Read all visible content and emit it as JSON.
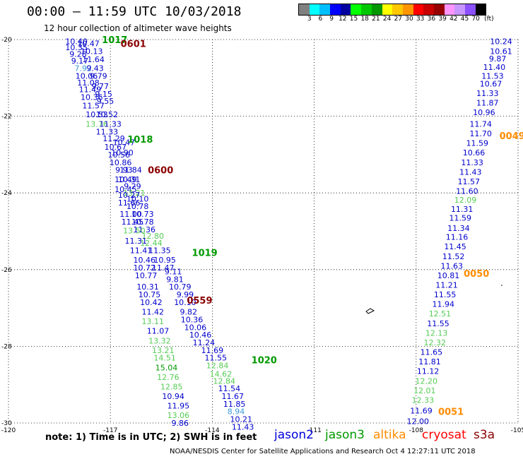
{
  "header": {
    "title": "00:00 – 11:59 UTC 10/03/2018",
    "subtitle": "12 hour collection of altimeter wave heights"
  },
  "colorbar": {
    "colors": [
      "#808080",
      "#00ffff",
      "#00bfff",
      "#0000ff",
      "#0000a0",
      "#00ff00",
      "#00c800",
      "#009600",
      "#ffff00",
      "#ffc800",
      "#ff9600",
      "#ff0000",
      "#c80000",
      "#960000",
      "#ff96ff",
      "#c896ff",
      "#8c50ff",
      "#000000"
    ],
    "labels": [
      "3",
      "6",
      "9",
      "12",
      "15",
      "18",
      "21",
      "24",
      "27",
      "30",
      "33",
      "36",
      "39",
      "42",
      "45",
      "70",
      "(ft)"
    ]
  },
  "axes": {
    "lon_ticks": [
      "-120",
      "-117",
      "-114",
      "-111",
      "-108",
      "-105"
    ],
    "lat_ticks": [
      "-20",
      "-22",
      "-24",
      "-26",
      "-28",
      "-30"
    ]
  },
  "chart_data": {
    "type": "scatter",
    "xlim": [
      -120,
      -105
    ],
    "ylim": [
      -30,
      -20
    ],
    "units": "ft",
    "points": [
      {
        "x": -118.0,
        "y": -20.05,
        "v": "10.40",
        "c": "#0000cc"
      },
      {
        "x": -117.65,
        "y": -20.1,
        "v": "10.47",
        "c": "#0000cc"
      },
      {
        "x": -118.0,
        "y": -20.2,
        "v": "10.35",
        "c": "#0000cc"
      },
      {
        "x": -117.55,
        "y": -20.3,
        "v": "10.13",
        "c": "#0000cc"
      },
      {
        "x": -117.95,
        "y": -20.38,
        "v": "9.28",
        "c": "#0000cc"
      },
      {
        "x": -117.9,
        "y": -20.55,
        "v": "9.17",
        "c": "#0000cc"
      },
      {
        "x": -117.5,
        "y": -20.52,
        "v": "11.64",
        "c": "#0000cc"
      },
      {
        "x": -117.8,
        "y": -20.75,
        "v": "7.92",
        "c": "#3c9bdc"
      },
      {
        "x": -117.45,
        "y": -20.75,
        "v": "9.43",
        "c": "#0000cc"
      },
      {
        "x": -117.7,
        "y": -20.95,
        "v": "10.06",
        "c": "#0000cc"
      },
      {
        "x": -117.35,
        "y": -20.95,
        "v": "9.79",
        "c": "#0000cc"
      },
      {
        "x": -117.65,
        "y": -21.12,
        "v": "11.08",
        "c": "#0000cc"
      },
      {
        "x": -117.3,
        "y": -21.22,
        "v": "9.77",
        "c": "#0000cc"
      },
      {
        "x": -117.6,
        "y": -21.3,
        "v": "11.49",
        "c": "#0000cc"
      },
      {
        "x": -117.2,
        "y": -21.42,
        "v": "9.15",
        "c": "#0000cc"
      },
      {
        "x": -117.55,
        "y": -21.5,
        "v": "10.36",
        "c": "#0000cc"
      },
      {
        "x": -117.15,
        "y": -21.6,
        "v": "9.55",
        "c": "#0000cc"
      },
      {
        "x": -117.5,
        "y": -21.72,
        "v": "11.57",
        "c": "#0000cc"
      },
      {
        "x": -117.4,
        "y": -21.95,
        "v": "10.53",
        "c": "#0000cc"
      },
      {
        "x": -117.1,
        "y": -21.95,
        "v": "10.52",
        "c": "#0000cc"
      },
      {
        "x": -117.4,
        "y": -22.2,
        "v": "13.76",
        "c": "#55cc55"
      },
      {
        "x": -117.0,
        "y": -22.2,
        "v": "11.33",
        "c": "#0000cc"
      },
      {
        "x": -117.1,
        "y": -22.4,
        "v": "11.33",
        "c": "#0000cc"
      },
      {
        "x": -116.9,
        "y": -22.58,
        "v": "11.29",
        "c": "#0000cc"
      },
      {
        "x": -116.6,
        "y": -22.68,
        "v": "10.47",
        "c": "#0000cc"
      },
      {
        "x": -116.85,
        "y": -22.8,
        "v": "10.67",
        "c": "#0000cc"
      },
      {
        "x": -116.65,
        "y": -22.95,
        "v": "10.90",
        "c": "#0000cc"
      },
      {
        "x": -116.75,
        "y": -23.0,
        "v": "10.56",
        "c": "#0000cc"
      },
      {
        "x": -116.7,
        "y": -23.2,
        "v": "10.86",
        "c": "#0000cc"
      },
      {
        "x": -116.4,
        "y": -23.4,
        "v": "11.84",
        "c": "#0000cc"
      },
      {
        "x": -116.6,
        "y": -23.4,
        "v": "9.93",
        "c": "#0000cc"
      },
      {
        "x": -116.55,
        "y": -23.65,
        "v": "10.49",
        "c": "#0000cc"
      },
      {
        "x": -116.45,
        "y": -23.65,
        "v": "10.31",
        "c": "#0000cc"
      },
      {
        "x": -116.35,
        "y": -23.82,
        "v": "9.29",
        "c": "#0000cc"
      },
      {
        "x": -116.55,
        "y": -23.9,
        "v": "10.45",
        "c": "#0000cc"
      },
      {
        "x": -116.3,
        "y": -24.0,
        "v": "13.21",
        "c": "#55cc55"
      },
      {
        "x": -116.45,
        "y": -24.05,
        "v": "10.27",
        "c": "#0000cc"
      },
      {
        "x": -116.2,
        "y": -24.15,
        "v": "10.10",
        "c": "#0000cc"
      },
      {
        "x": -116.45,
        "y": -24.25,
        "v": "11.66",
        "c": "#0000cc"
      },
      {
        "x": -116.2,
        "y": -24.35,
        "v": "10.78",
        "c": "#0000cc"
      },
      {
        "x": -116.4,
        "y": -24.55,
        "v": "11.00",
        "c": "#0000cc"
      },
      {
        "x": -116.05,
        "y": -24.55,
        "v": "10.73",
        "c": "#0000cc"
      },
      {
        "x": -116.35,
        "y": -24.75,
        "v": "11.45",
        "c": "#0000cc"
      },
      {
        "x": -116.05,
        "y": -24.75,
        "v": "10.78",
        "c": "#0000cc"
      },
      {
        "x": -116.0,
        "y": -24.95,
        "v": "11.36",
        "c": "#0000cc"
      },
      {
        "x": -116.3,
        "y": -24.98,
        "v": "13.50",
        "c": "#55cc55"
      },
      {
        "x": -115.75,
        "y": -25.12,
        "v": "12.80",
        "c": "#55cc55"
      },
      {
        "x": -116.25,
        "y": -25.25,
        "v": "11.31",
        "c": "#0000cc"
      },
      {
        "x": -115.8,
        "y": -25.3,
        "v": "12.44",
        "c": "#55cc55"
      },
      {
        "x": -116.1,
        "y": -25.5,
        "v": "11.41",
        "c": "#0000cc"
      },
      {
        "x": -115.55,
        "y": -25.5,
        "v": "11.35",
        "c": "#0000cc"
      },
      {
        "x": -116.0,
        "y": -25.75,
        "v": "10.46",
        "c": "#0000cc"
      },
      {
        "x": -115.4,
        "y": -25.75,
        "v": "10.95",
        "c": "#0000cc"
      },
      {
        "x": -116.0,
        "y": -25.95,
        "v": "10.72",
        "c": "#0000cc"
      },
      {
        "x": -115.45,
        "y": -25.95,
        "v": "11.47",
        "c": "#0000cc"
      },
      {
        "x": -115.15,
        "y": -26.05,
        "v": "9.11",
        "c": "#0000cc"
      },
      {
        "x": -115.95,
        "y": -26.15,
        "v": "10.77",
        "c": "#0000cc"
      },
      {
        "x": -115.1,
        "y": -26.25,
        "v": "9.81",
        "c": "#0000cc"
      },
      {
        "x": -115.9,
        "y": -26.45,
        "v": "10.31",
        "c": "#0000cc"
      },
      {
        "x": -114.95,
        "y": -26.45,
        "v": "10.79",
        "c": "#0000cc"
      },
      {
        "x": -115.85,
        "y": -26.65,
        "v": "10.75",
        "c": "#0000cc"
      },
      {
        "x": -114.8,
        "y": -26.65,
        "v": "9.99",
        "c": "#0000cc"
      },
      {
        "x": -115.8,
        "y": -26.85,
        "v": "10.42",
        "c": "#0000cc"
      },
      {
        "x": -114.8,
        "y": -26.85,
        "v": "10.10",
        "c": "#0000cc"
      },
      {
        "x": -115.75,
        "y": -27.1,
        "v": "11.42",
        "c": "#0000cc"
      },
      {
        "x": -114.7,
        "y": -27.1,
        "v": "9.82",
        "c": "#0000cc"
      },
      {
        "x": -115.75,
        "y": -27.35,
        "v": "13.11",
        "c": "#55cc55"
      },
      {
        "x": -114.6,
        "y": -27.3,
        "v": "10.36",
        "c": "#0000cc"
      },
      {
        "x": -114.5,
        "y": -27.5,
        "v": "10.06",
        "c": "#0000cc"
      },
      {
        "x": -115.6,
        "y": -27.6,
        "v": "11.07",
        "c": "#0000cc"
      },
      {
        "x": -114.35,
        "y": -27.7,
        "v": "10.46",
        "c": "#0000cc"
      },
      {
        "x": -115.55,
        "y": -27.85,
        "v": "13.32",
        "c": "#55cc55"
      },
      {
        "x": -114.25,
        "y": -27.9,
        "v": "11.24",
        "c": "#0000cc"
      },
      {
        "x": -115.45,
        "y": -28.1,
        "v": "13.21",
        "c": "#55cc55"
      },
      {
        "x": -114.0,
        "y": -28.1,
        "v": "11.69",
        "c": "#0000cc"
      },
      {
        "x": -115.4,
        "y": -28.3,
        "v": "14.51",
        "c": "#55cc55"
      },
      {
        "x": -113.9,
        "y": -28.3,
        "v": "11.55",
        "c": "#0000cc"
      },
      {
        "x": -115.35,
        "y": -28.55,
        "v": "15.04",
        "c": "#009900"
      },
      {
        "x": -113.85,
        "y": -28.5,
        "v": "12.84",
        "c": "#55cc55"
      },
      {
        "x": -113.75,
        "y": -28.72,
        "v": "14.62",
        "c": "#55cc55"
      },
      {
        "x": -115.3,
        "y": -28.8,
        "v": "12.76",
        "c": "#55cc55"
      },
      {
        "x": -113.65,
        "y": -28.9,
        "v": "12.84",
        "c": "#55cc55"
      },
      {
        "x": -115.2,
        "y": -29.05,
        "v": "12.85",
        "c": "#55cc55"
      },
      {
        "x": -113.5,
        "y": -29.1,
        "v": "11.54",
        "c": "#0000cc"
      },
      {
        "x": -115.15,
        "y": -29.3,
        "v": "10.94",
        "c": "#0000cc"
      },
      {
        "x": -113.4,
        "y": -29.3,
        "v": "11.67",
        "c": "#0000cc"
      },
      {
        "x": -115.0,
        "y": -29.55,
        "v": "11.95",
        "c": "#0000cc"
      },
      {
        "x": -113.35,
        "y": -29.5,
        "v": "11.85",
        "c": "#0000cc"
      },
      {
        "x": -115.0,
        "y": -29.8,
        "v": "13.06",
        "c": "#55cc55"
      },
      {
        "x": -113.3,
        "y": -29.7,
        "v": "8.94",
        "c": "#3c9bdc"
      },
      {
        "x": -113.15,
        "y": -29.9,
        "v": "10.21",
        "c": "#0000cc"
      },
      {
        "x": -114.95,
        "y": -30.0,
        "v": "9.86",
        "c": "#0000cc"
      },
      {
        "x": -113.1,
        "y": -30.1,
        "v": "11.43",
        "c": "#0000cc"
      },
      {
        "x": -105.5,
        "y": -20.05,
        "v": "10.24",
        "c": "#0000cc"
      },
      {
        "x": -105.5,
        "y": -20.3,
        "v": "10.61",
        "c": "#0000cc"
      },
      {
        "x": -105.6,
        "y": -20.5,
        "v": "9.87",
        "c": "#0000cc"
      },
      {
        "x": -105.7,
        "y": -20.72,
        "v": "11.40",
        "c": "#0000cc"
      },
      {
        "x": -105.75,
        "y": -20.95,
        "v": "11.53",
        "c": "#0000cc"
      },
      {
        "x": -105.8,
        "y": -21.15,
        "v": "10.67",
        "c": "#0000cc"
      },
      {
        "x": -105.9,
        "y": -21.4,
        "v": "11.33",
        "c": "#0000cc"
      },
      {
        "x": -105.9,
        "y": -21.65,
        "v": "11.87",
        "c": "#0000cc"
      },
      {
        "x": -106.0,
        "y": -21.9,
        "v": "10.96",
        "c": "#0000cc"
      },
      {
        "x": -106.1,
        "y": -22.2,
        "v": "11.74",
        "c": "#0000cc"
      },
      {
        "x": -106.1,
        "y": -22.45,
        "v": "11.70",
        "c": "#0000cc"
      },
      {
        "x": -106.2,
        "y": -22.7,
        "v": "11.59",
        "c": "#0000cc"
      },
      {
        "x": -106.3,
        "y": -22.95,
        "v": "10.66",
        "c": "#0000cc"
      },
      {
        "x": -106.35,
        "y": -23.2,
        "v": "11.33",
        "c": "#0000cc"
      },
      {
        "x": -106.4,
        "y": -23.45,
        "v": "11.43",
        "c": "#0000cc"
      },
      {
        "x": -106.45,
        "y": -23.7,
        "v": "11.57",
        "c": "#0000cc"
      },
      {
        "x": -106.5,
        "y": -23.95,
        "v": "11.60",
        "c": "#0000cc"
      },
      {
        "x": -106.55,
        "y": -24.18,
        "v": "12.09",
        "c": "#55cc55"
      },
      {
        "x": -106.65,
        "y": -24.42,
        "v": "11.31",
        "c": "#0000cc"
      },
      {
        "x": -106.7,
        "y": -24.65,
        "v": "11.59",
        "c": "#0000cc"
      },
      {
        "x": -106.75,
        "y": -24.92,
        "v": "11.34",
        "c": "#0000cc"
      },
      {
        "x": -106.8,
        "y": -25.15,
        "v": "11.16",
        "c": "#0000cc"
      },
      {
        "x": -106.85,
        "y": -25.4,
        "v": "11.45",
        "c": "#0000cc"
      },
      {
        "x": -106.9,
        "y": -25.65,
        "v": "11.52",
        "c": "#0000cc"
      },
      {
        "x": -106.95,
        "y": -25.9,
        "v": "11.63",
        "c": "#0000cc"
      },
      {
        "x": -107.05,
        "y": -26.15,
        "v": "10.81",
        "c": "#0000cc"
      },
      {
        "x": -107.1,
        "y": -26.4,
        "v": "11.21",
        "c": "#0000cc"
      },
      {
        "x": -107.15,
        "y": -26.65,
        "v": "11.55",
        "c": "#0000cc"
      },
      {
        "x": -107.2,
        "y": -26.9,
        "v": "11.94",
        "c": "#0000cc"
      },
      {
        "x": -107.3,
        "y": -27.15,
        "v": "12.51",
        "c": "#55cc55"
      },
      {
        "x": -107.35,
        "y": -27.4,
        "v": "11.55",
        "c": "#0000cc"
      },
      {
        "x": -107.4,
        "y": -27.65,
        "v": "12.13",
        "c": "#55cc55"
      },
      {
        "x": -107.45,
        "y": -27.9,
        "v": "12.32",
        "c": "#55cc55"
      },
      {
        "x": -107.55,
        "y": -28.15,
        "v": "11.65",
        "c": "#0000cc"
      },
      {
        "x": -107.6,
        "y": -28.4,
        "v": "11.81",
        "c": "#0000cc"
      },
      {
        "x": -107.65,
        "y": -28.65,
        "v": "11.12",
        "c": "#0000cc"
      },
      {
        "x": -107.7,
        "y": -28.9,
        "v": "12.20",
        "c": "#55cc55"
      },
      {
        "x": -107.75,
        "y": -29.15,
        "v": "12.01",
        "c": "#55cc55"
      },
      {
        "x": -107.8,
        "y": -29.4,
        "v": "12.33",
        "c": "#55cc55"
      },
      {
        "x": -107.85,
        "y": -29.68,
        "v": "11.69",
        "c": "#0000cc"
      },
      {
        "x": -107.95,
        "y": -29.95,
        "v": "12.00",
        "c": "#0000cc"
      }
    ],
    "time_labels": [
      {
        "x": -117.25,
        "y": -20.0,
        "t": "1017",
        "c": "#009900"
      },
      {
        "x": -116.7,
        "y": -20.1,
        "t": "0601",
        "c": "#8b0000"
      },
      {
        "x": -116.5,
        "y": -22.6,
        "t": "1018",
        "c": "#009900"
      },
      {
        "x": -115.9,
        "y": -23.4,
        "t": "0600",
        "c": "#8b0000"
      },
      {
        "x": -114.6,
        "y": -25.55,
        "t": "1019",
        "c": "#009900"
      },
      {
        "x": -114.75,
        "y": -26.8,
        "t": "0559",
        "c": "#8b0000"
      },
      {
        "x": -112.85,
        "y": -28.35,
        "t": "1020",
        "c": "#009900"
      },
      {
        "x": -105.55,
        "y": -22.5,
        "t": "0049",
        "c": "#ff8c00"
      },
      {
        "x": -106.6,
        "y": -26.1,
        "t": "0050",
        "c": "#ff8c00"
      },
      {
        "x": -107.35,
        "y": -29.7,
        "t": "0051",
        "c": "#ff8c00"
      }
    ]
  },
  "note": "note:  1) Time is in UTC;  2) SWH is in feet",
  "legend": [
    {
      "name": "jason2",
      "color": "#0000dd"
    },
    {
      "name": "jason3",
      "color": "#009900"
    },
    {
      "name": "altika",
      "color": "#ff8c00"
    },
    {
      "name": "cryosat",
      "color": "#ff0000"
    },
    {
      "name": "s3a",
      "color": "#8b0000"
    }
  ],
  "footer": "NOAA/NESDIS Center for Satellite Applications and Research    Oct  4 12:27:11 UTC 2018"
}
